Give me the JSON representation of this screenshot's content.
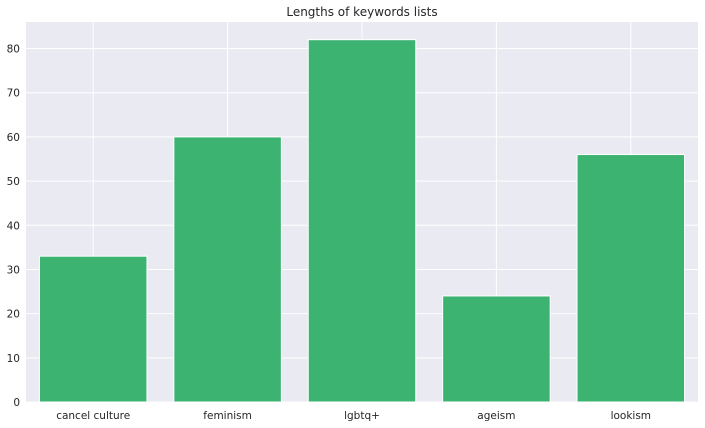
{
  "chart_data": {
    "type": "bar",
    "title": "Lengths of keywords lists",
    "xlabel": "",
    "ylabel": "",
    "categories": [
      "cancel culture",
      "feminism",
      "lgbtq+",
      "ageism",
      "lookism"
    ],
    "values": [
      33,
      60,
      82,
      24,
      56
    ],
    "ylim": [
      0,
      86
    ],
    "yticks": [
      0,
      10,
      20,
      30,
      40,
      50,
      60,
      70,
      80
    ],
    "grid": true,
    "legend": "none",
    "colors": {
      "bar": "#3cb371",
      "plot_background": "#eaeaf2",
      "grid": "#ffffff"
    }
  }
}
